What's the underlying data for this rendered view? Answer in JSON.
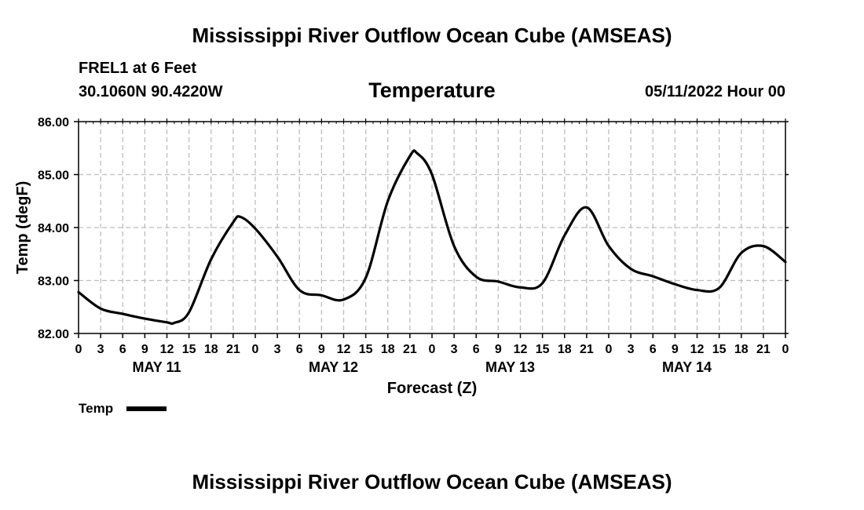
{
  "header": {
    "title": "Mississippi River Outflow Ocean Cube (AMSEAS)",
    "station": "FREL1 at 6 Feet",
    "coords": "30.1060N  90.4220W",
    "subtitle": "Temperature",
    "datetime": "05/11/2022 Hour 00"
  },
  "footer": {
    "title": "Mississippi River Outflow Ocean Cube (AMSEAS)"
  },
  "colors": {
    "line": "#000000",
    "grid": "#bdbdbd",
    "background": "#ffffff"
  },
  "chart_data": {
    "type": "line",
    "title": "Temperature",
    "xlabel": "Forecast (Z)",
    "ylabel": "Temp (degF)",
    "xlim": [
      0,
      96
    ],
    "ylim": [
      82,
      86
    ],
    "yticks": [
      "82.00",
      "83.00",
      "84.00",
      "85.00",
      "86.00"
    ],
    "xtick_labels": [
      "0",
      "3",
      "6",
      "9",
      "12",
      "15",
      "18",
      "21",
      "0",
      "3",
      "6",
      "9",
      "12",
      "15",
      "18",
      "21",
      "0",
      "3",
      "6",
      "9",
      "12",
      "15",
      "18",
      "21",
      "0",
      "3",
      "6",
      "9",
      "12",
      "15",
      "18",
      "21",
      "0"
    ],
    "day_labels": [
      "MAY 11",
      "MAY 12",
      "MAY 13",
      "MAY 14"
    ],
    "grid": true,
    "legend": {
      "position": "bottom-left",
      "label": "Temp"
    },
    "series": [
      {
        "name": "Temp",
        "x": [
          0,
          3,
          6,
          9,
          12,
          13,
          15,
          18,
          21,
          22,
          24,
          27,
          30,
          33,
          36,
          39,
          42,
          45,
          46,
          48,
          51,
          54,
          57,
          60,
          63,
          66,
          69,
          72,
          75,
          78,
          81,
          84,
          87,
          90,
          93,
          96
        ],
        "y": [
          82.78,
          82.47,
          82.37,
          82.28,
          82.21,
          82.2,
          82.4,
          83.4,
          84.1,
          84.2,
          83.98,
          83.45,
          82.82,
          82.72,
          82.64,
          83.05,
          84.5,
          85.35,
          85.4,
          85.0,
          83.65,
          83.07,
          82.98,
          82.87,
          82.95,
          83.85,
          84.38,
          83.65,
          83.22,
          83.08,
          82.93,
          82.82,
          82.86,
          83.52,
          83.65,
          83.35
        ]
      }
    ]
  }
}
